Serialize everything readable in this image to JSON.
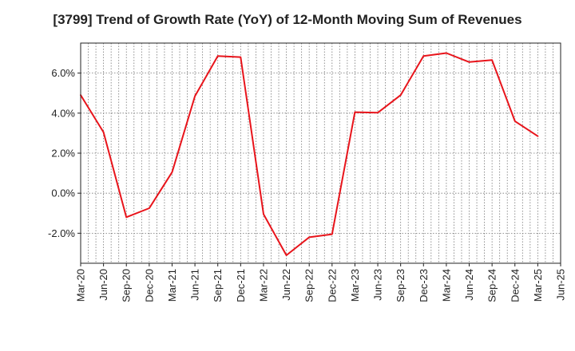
{
  "chart_data": {
    "type": "line",
    "title": "[3799]  Trend of Growth Rate (YoY) of 12-Month Moving Sum of Revenues",
    "xlabel": "",
    "ylabel": "",
    "ylim": [
      -3.5,
      7.5
    ],
    "yticks": [
      -2.0,
      0.0,
      2.0,
      4.0,
      6.0
    ],
    "ytick_labels": [
      "-2.0%",
      "0.0%",
      "2.0%",
      "4.0%",
      "6.0%"
    ],
    "xtick_labels": [
      "Mar-20",
      "Jun-20",
      "Sep-20",
      "Dec-20",
      "Mar-21",
      "Jun-21",
      "Sep-21",
      "Dec-21",
      "Mar-22",
      "Jun-22",
      "Sep-22",
      "Dec-22",
      "Mar-23",
      "Jun-23",
      "Sep-23",
      "Dec-23",
      "Mar-24",
      "Jun-24",
      "Sep-24",
      "Dec-24",
      "Mar-25",
      "Jun-25"
    ],
    "grid": true,
    "line_color": "#e8141b",
    "series": [
      {
        "x": [
          "Mar-20",
          "Jun-20",
          "Sep-20",
          "Dec-20",
          "Mar-21",
          "Jun-21",
          "Sep-21",
          "Dec-21",
          "Mar-22",
          "Jun-22",
          "Sep-22",
          "Dec-22",
          "Mar-23",
          "Jun-23",
          "Sep-23",
          "Dec-23",
          "Mar-24",
          "Jun-24",
          "Sep-24",
          "Dec-24",
          "Mar-25"
        ],
        "values": [
          4.9,
          3.05,
          -1.2,
          -0.75,
          1.05,
          4.85,
          6.85,
          6.8,
          -1.05,
          -3.1,
          -2.2,
          -2.05,
          4.05,
          4.02,
          4.9,
          6.85,
          7.0,
          6.55,
          6.65,
          3.6,
          2.85
        ]
      }
    ]
  }
}
